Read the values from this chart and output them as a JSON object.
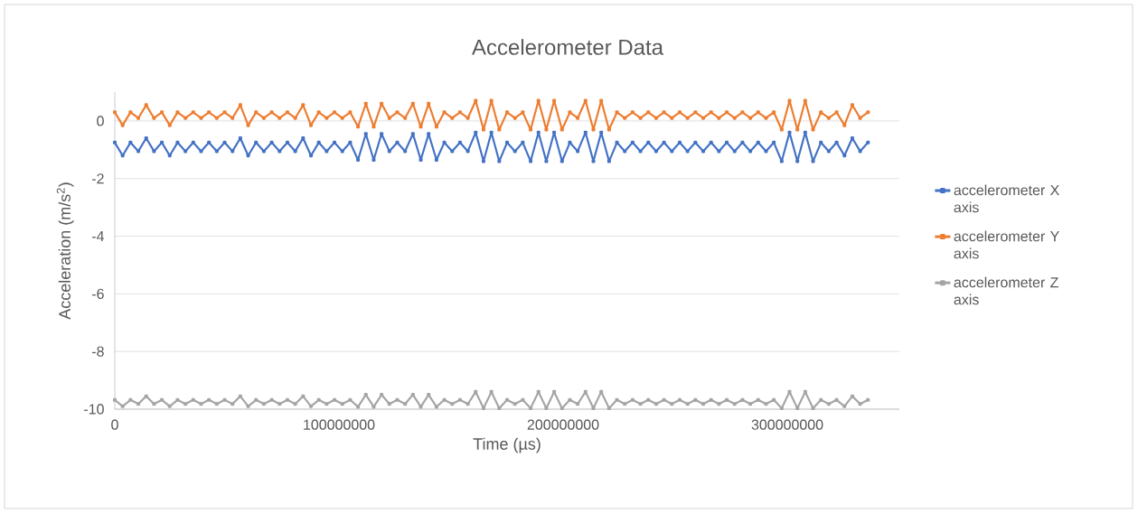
{
  "chart_data": {
    "type": "line",
    "title": "Accelerometer Data",
    "xlabel": "Time (µs)",
    "ylabel": "Acceleration (m/s$^{2}$)",
    "x": [
      0,
      3500000,
      7000000,
      10500000,
      14000000,
      17500000,
      21000000,
      24500000,
      28000000,
      31500000,
      35000000,
      38500000,
      42000000,
      45500000,
      49000000,
      52500000,
      56000000,
      59500000,
      63000000,
      66500000,
      70000000,
      73500000,
      77000000,
      80500000,
      84000000,
      87500000,
      91000000,
      94500000,
      98000000,
      101500000,
      105000000,
      108500000,
      112000000,
      115500000,
      119000000,
      122500000,
      126000000,
      129500000,
      133000000,
      136500000,
      140000000,
      143500000,
      147000000,
      150500000,
      154000000,
      157500000,
      161000000,
      164500000,
      168000000,
      171500000,
      175000000,
      178500000,
      182000000,
      185500000,
      189000000,
      192500000,
      196000000,
      199500000,
      203000000,
      206500000,
      210000000,
      213500000,
      217000000,
      220500000,
      224000000,
      227500000,
      231000000,
      234500000,
      238000000,
      241500000,
      245000000,
      248500000,
      252000000,
      255500000,
      259000000,
      262500000,
      266000000,
      269500000,
      273000000,
      276500000,
      280000000,
      283500000,
      287000000,
      290500000,
      294000000,
      297500000,
      301000000,
      304500000,
      308000000,
      311500000,
      315000000,
      318500000,
      322000000,
      325500000,
      329000000,
      332500000,
      336000000
    ],
    "series": [
      {
        "name": "accelerometer X axis",
        "color": "#4472c4",
        "values": [
          -0.75,
          -1.2,
          -0.75,
          -1.05,
          -0.6,
          -1.05,
          -0.75,
          -1.2,
          -0.75,
          -1.05,
          -0.75,
          -1.05,
          -0.75,
          -1.05,
          -0.75,
          -1.05,
          -0.6,
          -1.2,
          -0.75,
          -1.05,
          -0.75,
          -1.05,
          -0.75,
          -1.05,
          -0.6,
          -1.2,
          -0.75,
          -1.05,
          -0.75,
          -1.05,
          -0.75,
          -1.35,
          -0.45,
          -1.35,
          -0.45,
          -1.05,
          -0.75,
          -1.05,
          -0.45,
          -1.35,
          -0.45,
          -1.35,
          -0.75,
          -1.05,
          -0.75,
          -1.05,
          -0.4,
          -1.4,
          -0.4,
          -1.4,
          -0.75,
          -1.05,
          -0.75,
          -1.4,
          -0.4,
          -1.4,
          -0.4,
          -1.4,
          -0.75,
          -1.05,
          -0.4,
          -1.4,
          -0.4,
          -1.4,
          -0.75,
          -1.05,
          -0.75,
          -1.05,
          -0.75,
          -1.05,
          -0.75,
          -1.05,
          -0.75,
          -1.05,
          -0.75,
          -1.05,
          -0.75,
          -1.05,
          -0.75,
          -1.05,
          -0.75,
          -1.05,
          -0.75,
          -1.05,
          -0.75,
          -1.4,
          -0.4,
          -1.4,
          -0.4,
          -1.4,
          -0.75,
          -1.05,
          -0.75,
          -1.2,
          -0.6,
          -1.05,
          -0.75
        ]
      },
      {
        "name": "accelerometer Y axis",
        "color": "#ed7d31",
        "values": [
          0.3,
          -0.15,
          0.3,
          0.1,
          0.55,
          0.1,
          0.3,
          -0.15,
          0.3,
          0.1,
          0.3,
          0.1,
          0.3,
          0.1,
          0.3,
          0.1,
          0.55,
          -0.15,
          0.3,
          0.1,
          0.3,
          0.1,
          0.3,
          0.1,
          0.55,
          -0.15,
          0.3,
          0.1,
          0.3,
          0.1,
          0.3,
          -0.2,
          0.6,
          -0.2,
          0.6,
          0.1,
          0.3,
          0.1,
          0.6,
          -0.2,
          0.6,
          -0.2,
          0.3,
          0.1,
          0.3,
          0.1,
          0.7,
          -0.3,
          0.7,
          -0.3,
          0.3,
          0.1,
          0.3,
          -0.3,
          0.7,
          -0.3,
          0.7,
          -0.3,
          0.3,
          0.1,
          0.7,
          -0.3,
          0.7,
          -0.3,
          0.3,
          0.1,
          0.3,
          0.1,
          0.3,
          0.1,
          0.3,
          0.1,
          0.3,
          0.1,
          0.3,
          0.1,
          0.3,
          0.1,
          0.3,
          0.1,
          0.3,
          0.1,
          0.3,
          0.1,
          0.3,
          -0.3,
          0.7,
          -0.3,
          0.7,
          -0.3,
          0.3,
          0.1,
          0.3,
          -0.15,
          0.55,
          0.1,
          0.3
        ]
      },
      {
        "name": "accelerometer Z axis",
        "color": "#a5a5a5",
        "values": [
          -9.68,
          -9.9,
          -9.68,
          -9.82,
          -9.55,
          -9.82,
          -9.68,
          -9.9,
          -9.68,
          -9.82,
          -9.68,
          -9.82,
          -9.68,
          -9.82,
          -9.68,
          -9.82,
          -9.55,
          -9.9,
          -9.68,
          -9.82,
          -9.68,
          -9.82,
          -9.68,
          -9.82,
          -9.55,
          -9.9,
          -9.68,
          -9.82,
          -9.68,
          -9.82,
          -9.68,
          -9.92,
          -9.5,
          -9.92,
          -9.5,
          -9.82,
          -9.68,
          -9.82,
          -9.5,
          -9.92,
          -9.5,
          -9.92,
          -9.68,
          -9.82,
          -9.68,
          -9.82,
          -9.4,
          -9.97,
          -9.4,
          -9.97,
          -9.68,
          -9.82,
          -9.68,
          -9.97,
          -9.4,
          -9.97,
          -9.4,
          -9.97,
          -9.68,
          -9.82,
          -9.4,
          -9.97,
          -9.4,
          -9.97,
          -9.68,
          -9.82,
          -9.68,
          -9.82,
          -9.68,
          -9.82,
          -9.68,
          -9.82,
          -9.68,
          -9.82,
          -9.68,
          -9.82,
          -9.68,
          -9.82,
          -9.68,
          -9.82,
          -9.68,
          -9.82,
          -9.68,
          -9.82,
          -9.68,
          -9.97,
          -9.4,
          -9.97,
          -9.4,
          -9.97,
          -9.68,
          -9.82,
          -9.68,
          -9.9,
          -9.55,
          -9.82,
          -9.68
        ]
      }
    ],
    "xlim": [
      0,
      350000000
    ],
    "xticks": [
      0,
      100000000,
      200000000,
      300000000
    ],
    "ylim": [
      -10,
      1
    ],
    "yticks": [
      -10,
      -8,
      -6,
      -4,
      -2,
      0
    ],
    "grid": "y",
    "legend": "right",
    "marker": "square",
    "line_style": "solid"
  }
}
